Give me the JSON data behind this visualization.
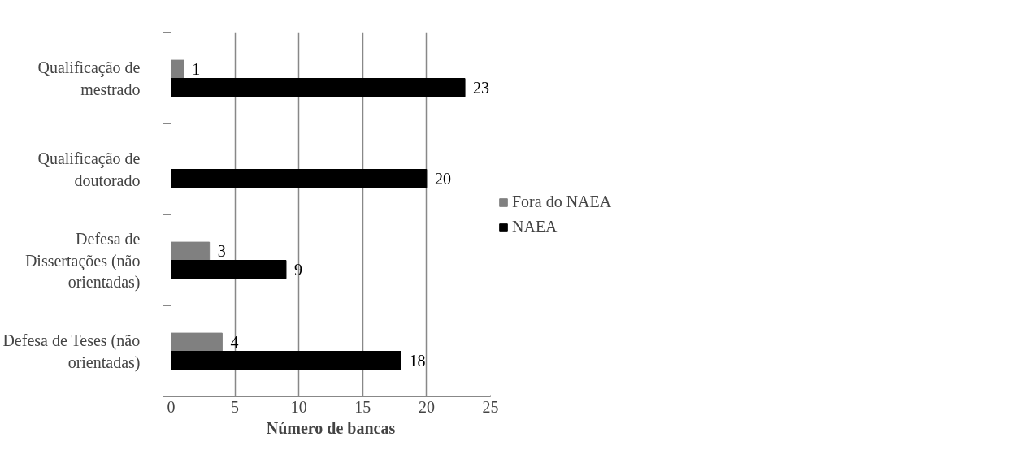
{
  "chart_data": {
    "type": "bar",
    "orientation": "horizontal",
    "xlabel": "Número de bancas",
    "categories": [
      "Qualificação de mestrado",
      "Qualificação de doutorado",
      "Defesa de Dissertações (não orientadas)",
      "Defesa de Teses (não orientadas)"
    ],
    "series": [
      {
        "name": "Fora do NAEA",
        "color": "#808080",
        "values": [
          1,
          null,
          3,
          4
        ]
      },
      {
        "name": "NAEA",
        "color": "#000000",
        "values": [
          23,
          20,
          9,
          18
        ]
      }
    ],
    "xlim": [
      0,
      25
    ],
    "xticks": [
      0,
      5,
      10,
      15,
      20,
      25
    ],
    "grid": "x",
    "legend": "right",
    "data_labels": true
  }
}
